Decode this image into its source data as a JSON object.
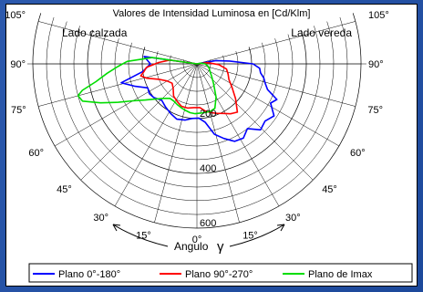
{
  "chart_data": {
    "type": "polar-line",
    "title": "Valores de Intensidad Luminosa en [Cd/Klm]",
    "left_label": "Lado calzada",
    "right_label": "Lado vereda",
    "angle_axis_label": "Angulo",
    "angle_symbol": "γ",
    "radial_ticks": [
      200,
      400,
      600
    ],
    "radial_max": 600,
    "angle_ticks": [
      {
        "angle": 105,
        "label": "105°"
      },
      {
        "angle": 90,
        "label": "90°"
      },
      {
        "angle": 75,
        "label": "75°"
      },
      {
        "angle": 60,
        "label": "60°"
      },
      {
        "angle": 45,
        "label": "45°"
      },
      {
        "angle": 30,
        "label": "30°"
      },
      {
        "angle": 15,
        "label": "15°"
      },
      {
        "angle": 0,
        "label": "0°"
      }
    ],
    "series": [
      {
        "name": "Plano 0°-180°",
        "color": "#0000ff",
        "points": [
          [
            -108,
            0
          ],
          [
            -98,
            195
          ],
          [
            -90,
            170
          ],
          [
            -82,
            200
          ],
          [
            -76,
            285
          ],
          [
            -70,
            240
          ],
          [
            -64,
            200
          ],
          [
            -58,
            205
          ],
          [
            -52,
            200
          ],
          [
            -44,
            185
          ],
          [
            -36,
            195
          ],
          [
            -28,
            205
          ],
          [
            -20,
            215
          ],
          [
            -12,
            210
          ],
          [
            -5,
            200
          ],
          [
            2,
            198
          ],
          [
            8,
            215
          ],
          [
            14,
            265
          ],
          [
            20,
            290
          ],
          [
            26,
            315
          ],
          [
            32,
            320
          ],
          [
            38,
            300
          ],
          [
            44,
            335
          ],
          [
            50,
            325
          ],
          [
            56,
            340
          ],
          [
            62,
            305
          ],
          [
            66,
            320
          ],
          [
            70,
            275
          ],
          [
            74,
            260
          ],
          [
            78,
            250
          ],
          [
            82,
            235
          ],
          [
            86,
            230
          ],
          [
            90,
            205
          ],
          [
            95,
            120
          ],
          [
            100,
            70
          ],
          [
            108,
            0
          ]
        ]
      },
      {
        "name": "Plano 90°-270°",
        "color": "#ff0000",
        "points": [
          [
            -105,
            0
          ],
          [
            -98,
            100
          ],
          [
            -92,
            140
          ],
          [
            -86,
            185
          ],
          [
            -82,
            195
          ],
          [
            -78,
            210
          ],
          [
            -74,
            190
          ],
          [
            -68,
            150
          ],
          [
            -60,
            125
          ],
          [
            -52,
            115
          ],
          [
            -44,
            125
          ],
          [
            -36,
            145
          ],
          [
            -28,
            155
          ],
          [
            -20,
            165
          ],
          [
            -12,
            165
          ],
          [
            -4,
            160
          ],
          [
            4,
            160
          ],
          [
            10,
            175
          ],
          [
            16,
            185
          ],
          [
            22,
            195
          ],
          [
            28,
            205
          ],
          [
            34,
            220
          ],
          [
            40,
            230
          ],
          [
            48,
            190
          ],
          [
            56,
            155
          ],
          [
            64,
            130
          ],
          [
            72,
            120
          ],
          [
            80,
            110
          ],
          [
            88,
            80
          ],
          [
            96,
            40
          ],
          [
            105,
            0
          ]
        ]
      },
      {
        "name": "Plano de Imax",
        "color": "#00dd00",
        "points": [
          [
            -105,
            0
          ],
          [
            -98,
            165
          ],
          [
            -92,
            255
          ],
          [
            -88,
            290
          ],
          [
            -84,
            330
          ],
          [
            -80,
            375
          ],
          [
            -77,
            430
          ],
          [
            -75,
            450
          ],
          [
            -72,
            440
          ],
          [
            -68,
            380
          ],
          [
            -64,
            320
          ],
          [
            -60,
            270
          ],
          [
            -55,
            230
          ],
          [
            -50,
            200
          ],
          [
            -44,
            175
          ],
          [
            -38,
            160
          ],
          [
            -32,
            160
          ],
          [
            -26,
            165
          ],
          [
            -20,
            170
          ],
          [
            -14,
            175
          ],
          [
            -8,
            180
          ],
          [
            -2,
            182
          ],
          [
            4,
            180
          ],
          [
            10,
            180
          ],
          [
            16,
            180
          ],
          [
            22,
            175
          ],
          [
            30,
            140
          ],
          [
            40,
            95
          ],
          [
            50,
            70
          ],
          [
            60,
            55
          ],
          [
            70,
            48
          ],
          [
            80,
            40
          ],
          [
            90,
            30
          ],
          [
            100,
            15
          ],
          [
            105,
            0
          ]
        ]
      }
    ]
  }
}
